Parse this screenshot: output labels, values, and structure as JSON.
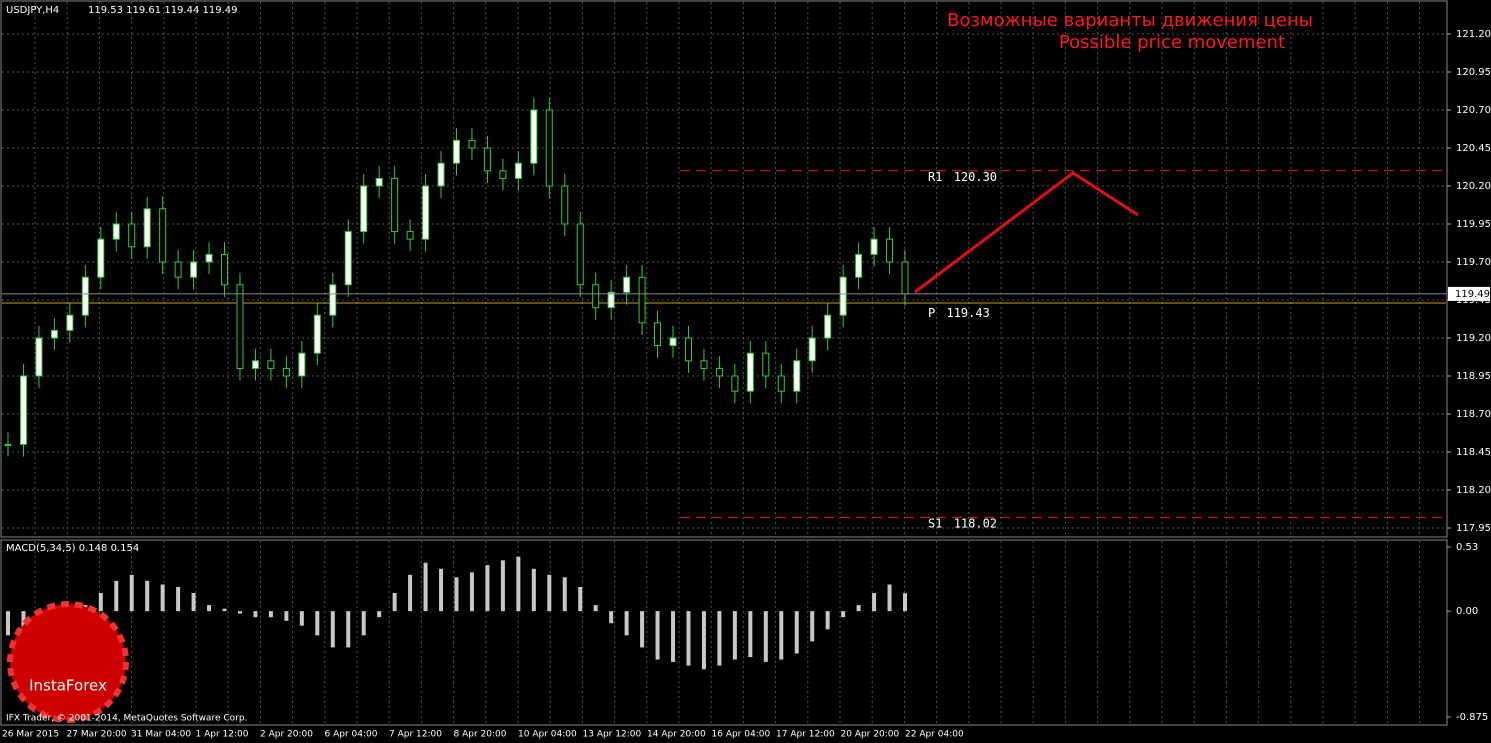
{
  "header": {
    "symbol": "USDJPY,H4",
    "quote": "119.53 119.61 119.44 119.49"
  },
  "annotation": {
    "line1": "Возможные варианты движения цены",
    "line2": "Possible price movement"
  },
  "price_axis": {
    "ticks": [
      {
        "value": 121.2,
        "label": "121.20"
      },
      120.95,
      {
        "value": 120.7,
        "label": "120.70"
      },
      120.45,
      {
        "value": 120.2,
        "label": "120.20"
      },
      119.95,
      {
        "value": 119.7,
        "label": "119.70"
      },
      119.45,
      {
        "value": 119.2,
        "label": "119.20"
      },
      118.95,
      {
        "value": 118.7,
        "label": "118.70"
      },
      118.45,
      {
        "value": 118.2,
        "label": "118.20"
      },
      117.95
    ],
    "current": 119.49
  },
  "levels": [
    {
      "name": "R1",
      "value": 120.3,
      "label": "120.30"
    },
    {
      "name": "P",
      "value": 119.43
    },
    {
      "name": "S1",
      "value": 118.02
    }
  ],
  "closes": [
    118.5,
    118.95,
    119.2,
    119.25,
    119.35,
    119.6,
    119.85,
    119.95,
    119.8,
    120.05,
    119.7,
    119.6,
    119.7,
    119.75,
    119.55,
    119.0,
    119.05,
    119.0,
    118.95,
    119.1,
    119.35,
    119.55,
    119.9,
    120.2,
    120.25,
    119.9,
    119.85,
    120.2,
    120.35,
    120.5,
    120.45,
    120.3,
    120.25,
    120.35,
    120.7,
    120.2,
    119.95,
    119.55,
    119.4,
    119.5,
    119.6,
    119.3,
    119.15,
    119.2,
    119.05,
    119.0,
    118.95,
    118.85,
    119.1,
    118.95,
    118.85,
    119.05,
    119.2,
    119.35,
    119.6,
    119.75,
    119.85,
    119.7,
    119.49
  ],
  "macd": {
    "label": "MACD(5,34,5) 0.148 0.154",
    "ticks": [
      0.53,
      {
        "value": 0,
        "label": "0.00"
      },
      -0.875
    ],
    "values": [
      -0.2,
      -0.18,
      -0.15,
      -0.1,
      -0.05,
      0.05,
      0.15,
      0.25,
      0.3,
      0.25,
      0.22,
      0.2,
      0.15,
      0.05,
      0.02,
      -0.02,
      -0.05,
      -0.05,
      -0.08,
      -0.12,
      -0.2,
      -0.3,
      -0.3,
      -0.2,
      -0.05,
      0.15,
      0.3,
      0.4,
      0.35,
      0.28,
      0.32,
      0.38,
      0.42,
      0.45,
      0.35,
      0.3,
      0.28,
      0.2,
      0.05,
      -0.1,
      -0.2,
      -0.3,
      -0.4,
      -0.42,
      -0.45,
      -0.48,
      -0.45,
      -0.4,
      -0.38,
      -0.42,
      -0.4,
      -0.35,
      -0.25,
      -0.15,
      -0.05,
      0.05,
      0.15,
      0.22,
      0.148
    ]
  },
  "dates": [
    "26 Mar 2015",
    "27 Mar 20:00",
    "31 Mar 04:00",
    "1 Apr 12:00",
    "2 Apr 20:00",
    "6 Apr 04:00",
    "7 Apr 12:00",
    "8 Apr 20:00",
    "10 Apr 04:00",
    "13 Apr 12:00",
    "14 Apr 20:00",
    "16 Apr 04:00",
    "17 Apr 12:00",
    "20 Apr 20:00",
    "22 Apr 04:00"
  ],
  "footer": "IFX Trader, © 2001-2014, MetaQuotes Software Corp.",
  "logo": "InstaForex"
}
